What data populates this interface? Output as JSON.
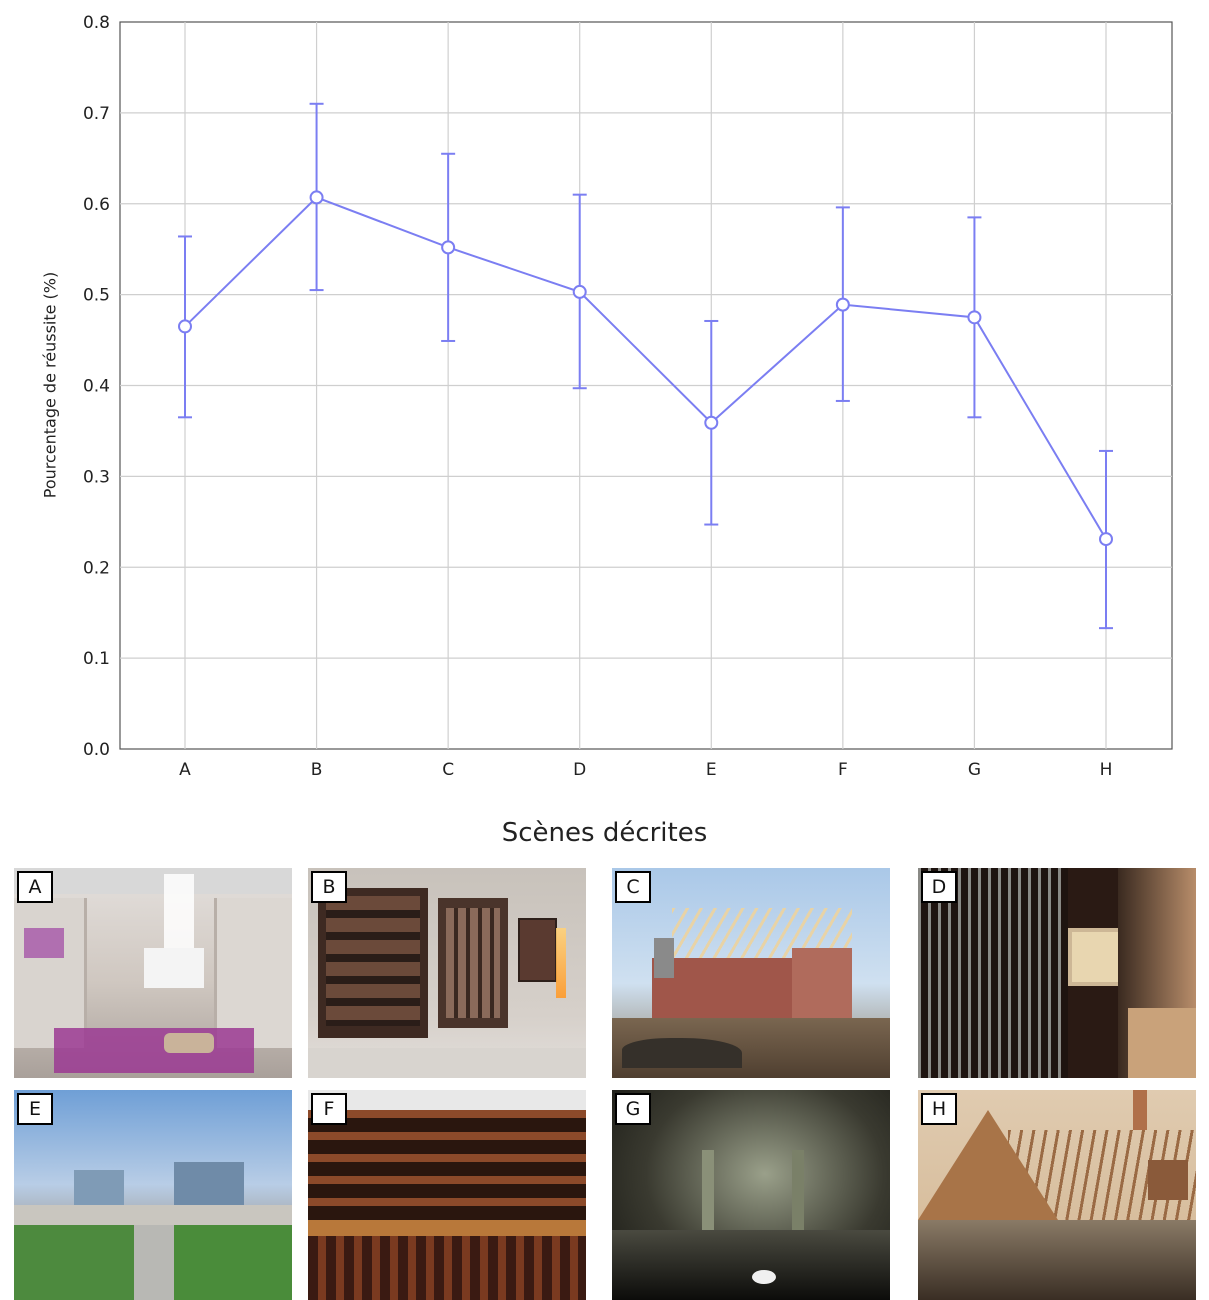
{
  "chart_data": {
    "type": "line",
    "title": "",
    "xlabel": "Scènes décrites",
    "ylabel": "Pourcentage de réussite (%)",
    "ylim": [
      0.0,
      0.8
    ],
    "yticks": [
      "0.0",
      "0.1",
      "0.2",
      "0.3",
      "0.4",
      "0.5",
      "0.6",
      "0.7",
      "0.8"
    ],
    "categories": [
      "A",
      "B",
      "C",
      "D",
      "E",
      "F",
      "G",
      "H"
    ],
    "series": [
      {
        "values": [
          0.465,
          0.607,
          0.552,
          0.503,
          0.359,
          0.489,
          0.475,
          0.231
        ],
        "error_low": [
          0.365,
          0.505,
          0.449,
          0.397,
          0.247,
          0.383,
          0.365,
          0.133
        ],
        "error_high": [
          0.564,
          0.71,
          0.655,
          0.61,
          0.471,
          0.596,
          0.585,
          0.328
        ],
        "color": "#7b7ef2"
      }
    ],
    "grid": true,
    "legend": "none"
  },
  "gallery": {
    "photos": [
      {
        "label": "A",
        "subject": "walk-in dressing room with purple rug"
      },
      {
        "label": "B",
        "subject": "wooden walk-in closet with lighting"
      },
      {
        "label": "C",
        "subject": "brick house under construction with roof frame"
      },
      {
        "label": "D",
        "subject": "wine bottle wall rack"
      },
      {
        "label": "E",
        "subject": "city avenue skyline view"
      },
      {
        "label": "F",
        "subject": "wooden wine cellar shelves"
      },
      {
        "label": "G",
        "subject": "underground vaulted cistern with water"
      },
      {
        "label": "H",
        "subject": "roof timber frame of a turret house"
      }
    ]
  }
}
